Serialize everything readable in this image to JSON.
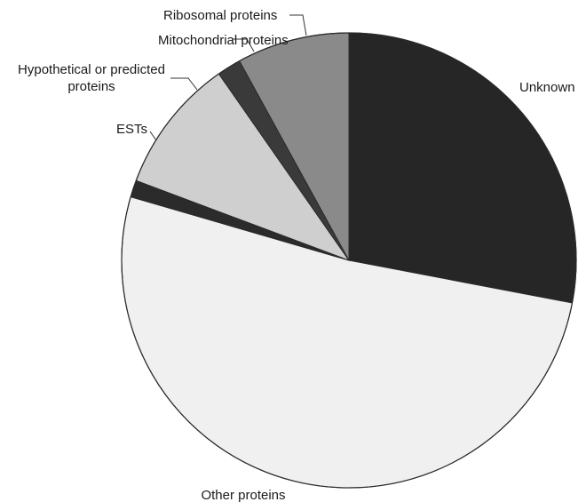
{
  "chart_data": {
    "type": "pie",
    "title": "",
    "slices": [
      {
        "label": "Unknown",
        "label_lines": [
          "Unknown"
        ],
        "value": 28.0,
        "color": "#262626"
      },
      {
        "label": "Other proteins",
        "label_lines": [
          "Other proteins"
        ],
        "value": 51.5,
        "color": "#f0f0f0"
      },
      {
        "label": "ESTs",
        "label_lines": [
          "ESTs"
        ],
        "value": 1.2,
        "color": "#2b2b2b"
      },
      {
        "label": "Hypothetical or predicted proteins",
        "label_lines": [
          "Hypothetical or predicted",
          "proteins"
        ],
        "value": 9.6,
        "color": "#cfcfcf"
      },
      {
        "label": "Mitochondrial proteins",
        "label_lines": [
          "Mitochondrial proteins"
        ],
        "value": 1.7,
        "color": "#3a3a3a"
      },
      {
        "label": "Ribosomal proteins",
        "label_lines": [
          "Ribosomal proteins"
        ],
        "value": 8.0,
        "color": "#8a8a8a"
      }
    ],
    "start_angle_deg": 0,
    "direction": "clockwise",
    "legend": "none"
  }
}
